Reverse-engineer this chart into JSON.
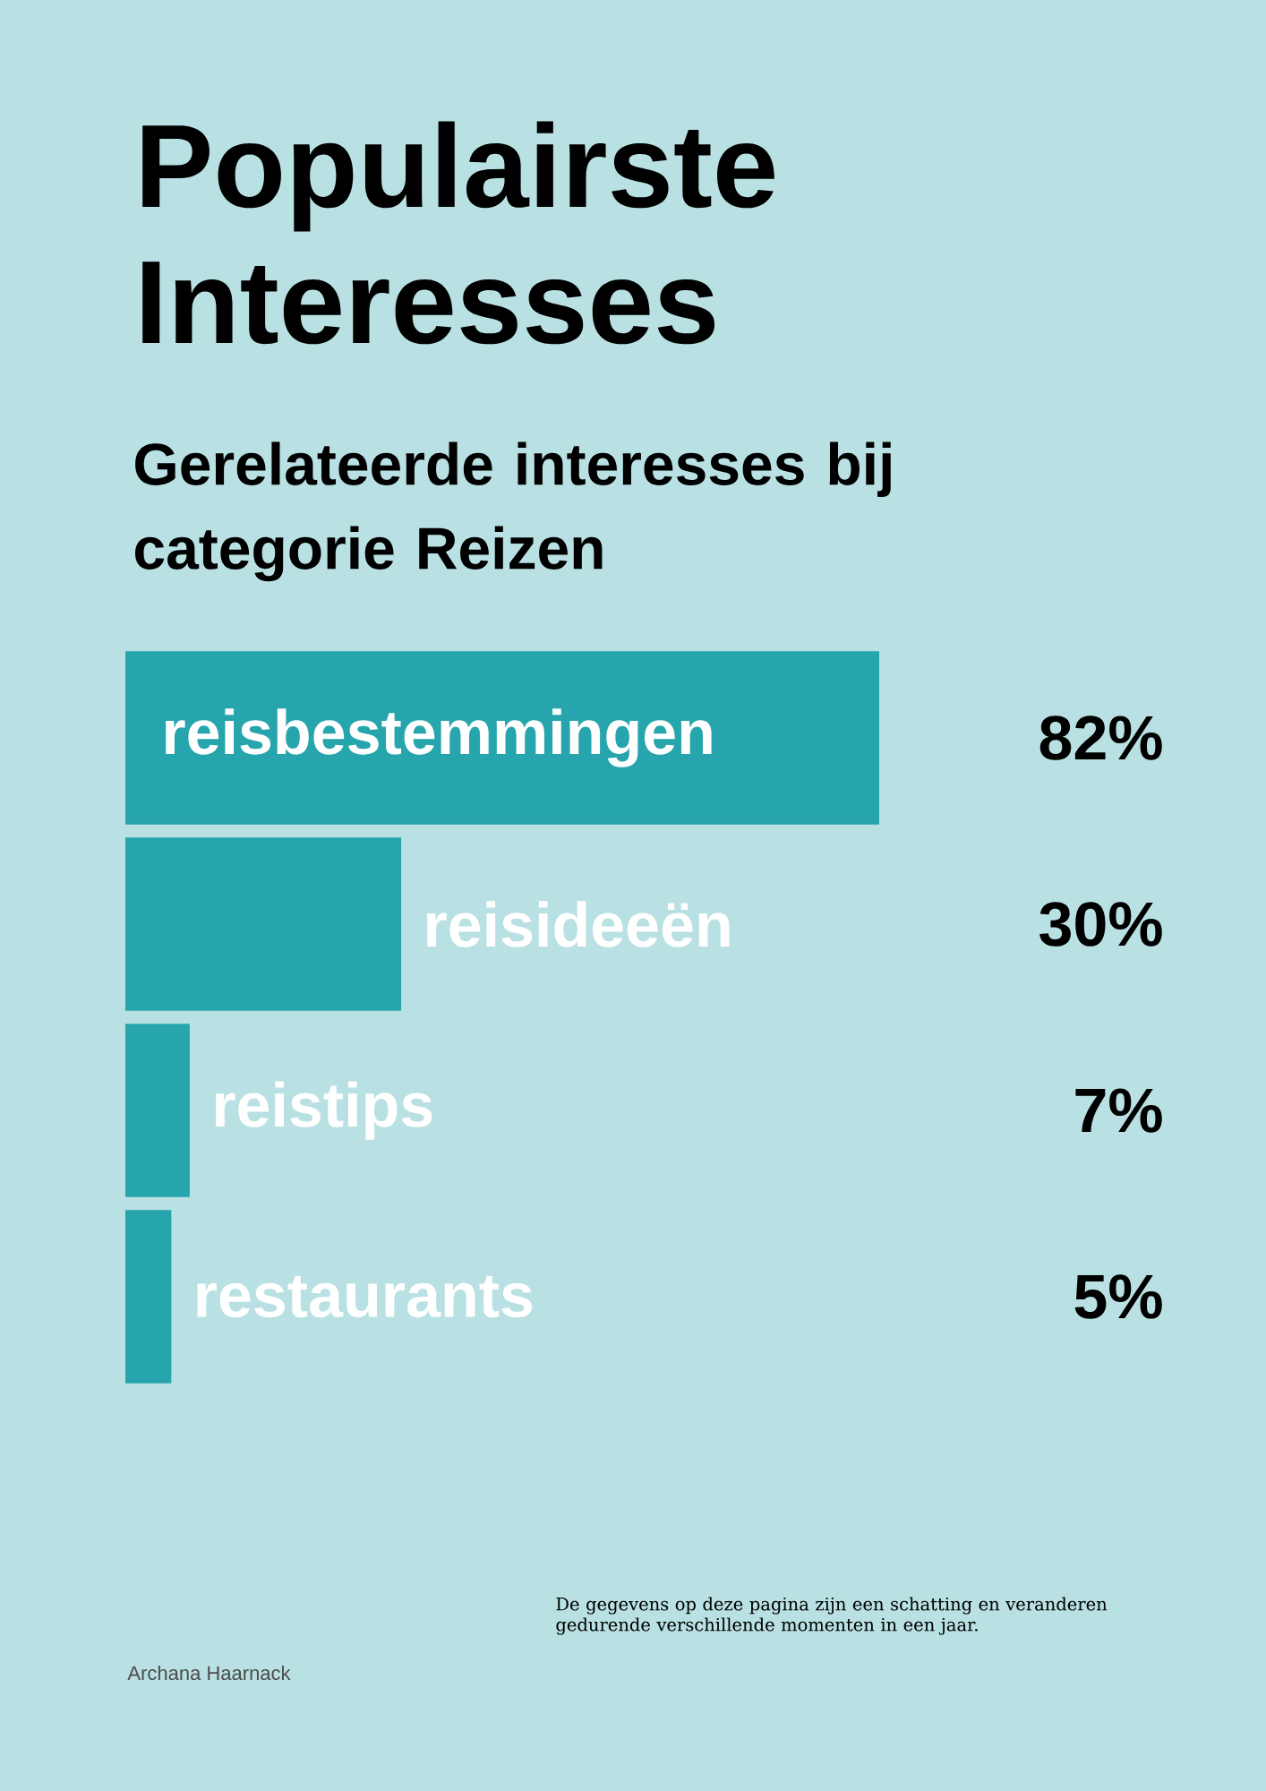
{
  "chart_data": {
    "type": "bar",
    "orientation": "horizontal",
    "title": "Populairste Interesses",
    "subtitle": "Gerelateerde interesses bij categorie Reizen",
    "categories": [
      "reisbestemmingen",
      "reisideeën",
      "reistips",
      "restaurants"
    ],
    "values": [
      82,
      30,
      7,
      5
    ],
    "value_labels": [
      "82%",
      "30%",
      "7%",
      "5%"
    ],
    "color": "#26a5ad",
    "annotations": [
      "De gegevens op deze pagina zijn een schatting en veranderen gedurende verschillende momenten in een jaar.",
      "Archana Haarnack"
    ]
  }
}
